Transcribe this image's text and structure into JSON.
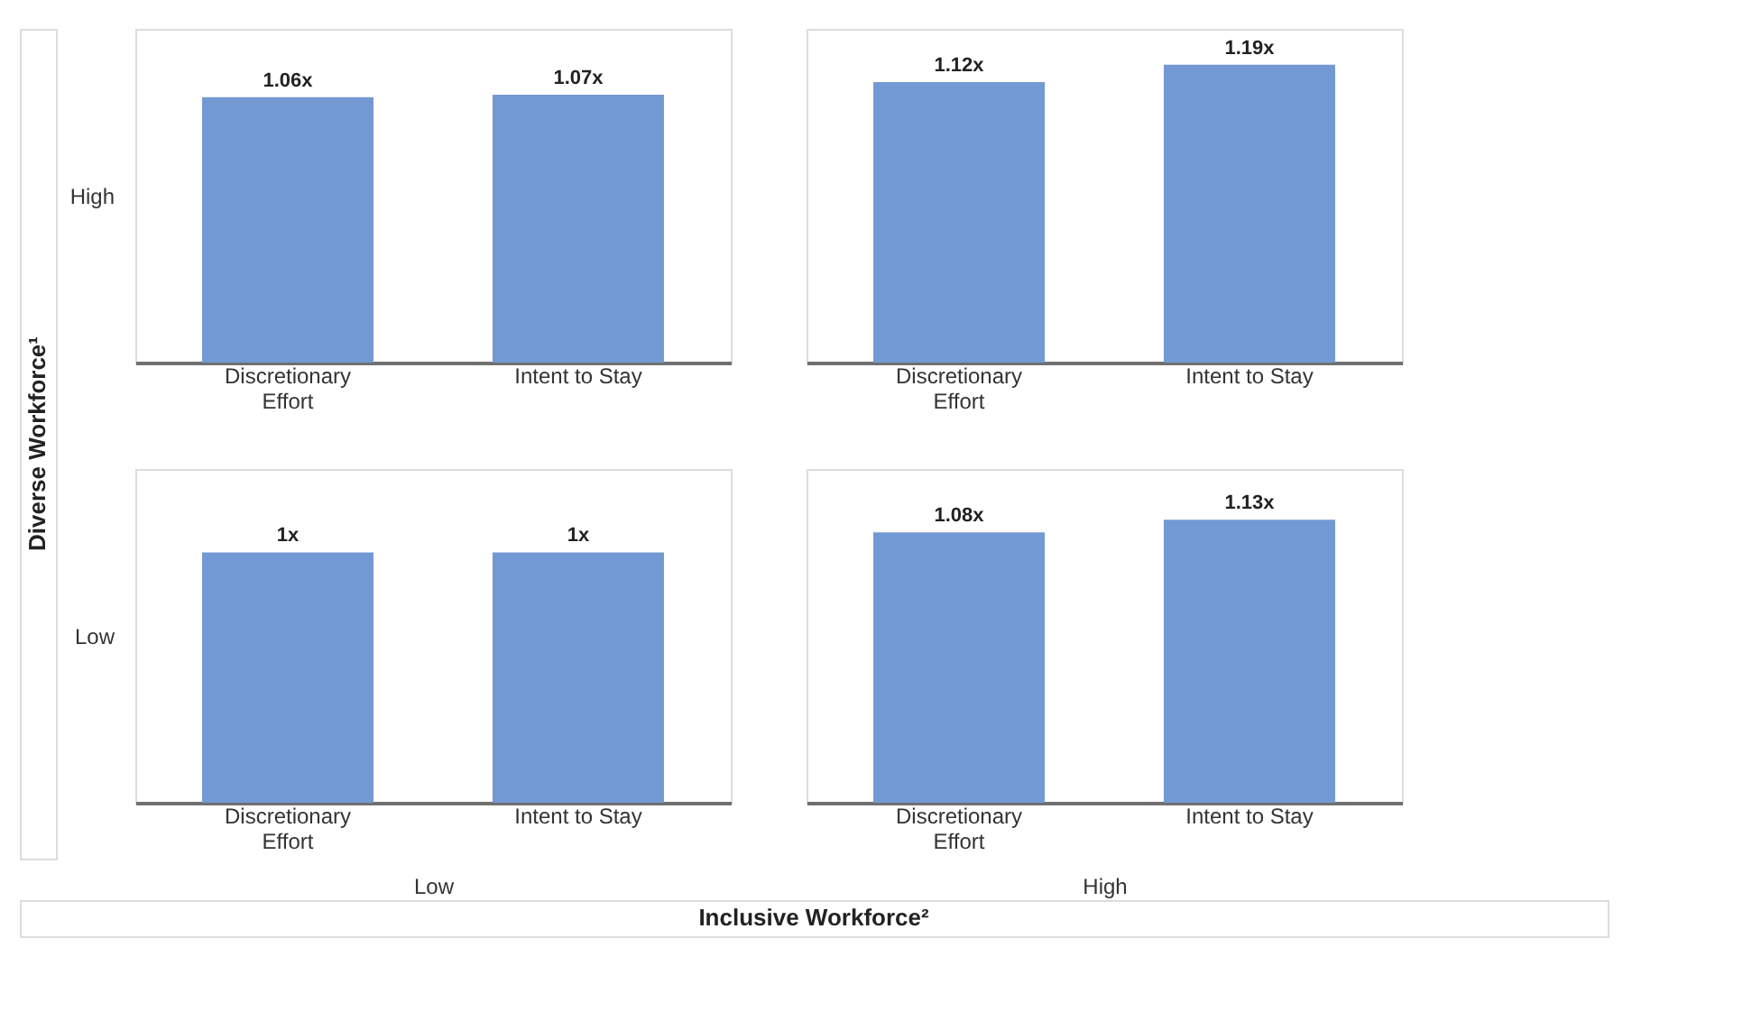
{
  "chart_data": [
    {
      "type": "bar",
      "categories": [
        "Discretionary\nEffort",
        "Intent to Stay"
      ],
      "values": [
        1.06,
        1.07
      ],
      "value_labels": [
        "1.06x",
        "1.07x"
      ],
      "colors": [
        "#7399d4",
        "#7399d4"
      ],
      "tick_labels": "x",
      "ylabel": "High",
      "annotations": [
        "Diverse Workforce¹"
      ]
    },
    {
      "type": "bar",
      "categories": [
        "Discretionary\nEffort",
        "Intent to Stay"
      ],
      "values": [
        1.12,
        1.19
      ],
      "value_labels": [
        "1.12x",
        "1.19x"
      ],
      "colors": [
        "#7399d4",
        "#7399d4"
      ],
      "tick_labels": "x"
    },
    {
      "type": "bar",
      "categories": [
        "Discretionary\nEffort",
        "Intent to Stay"
      ],
      "values": [
        1,
        1
      ],
      "value_labels": [
        "1x",
        "1x"
      ],
      "colors": [
        "#7399d4",
        "#7399d4"
      ],
      "tick_labels": "x",
      "ylabel": "Low",
      "xlabel": "Low",
      "annotations": [
        "Inclusive Workforce²"
      ]
    },
    {
      "type": "bar",
      "categories": [
        "Discretionary\nEffort",
        "Intent to Stay"
      ],
      "values": [
        1.08,
        1.13
      ],
      "value_labels": [
        "1.08x",
        "1.13x"
      ],
      "colors": [
        "#7399d4",
        "#7399d4"
      ],
      "tick_labels": "x",
      "xlabel": "High"
    }
  ]
}
